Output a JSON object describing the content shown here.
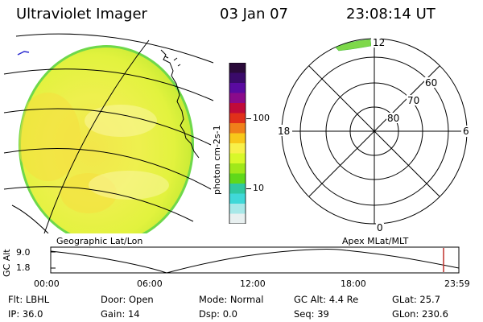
{
  "header": {
    "instrument": "Ultraviolet Imager",
    "date": "03 Jan 07",
    "time": "23:08:14 UT"
  },
  "colorbar": {
    "label": "photon cm-2s-1",
    "ticks": [
      "100",
      "10"
    ],
    "colors": [
      "#2a0a3a",
      "#3a0a6a",
      "#5a0aa0",
      "#8a0a8a",
      "#c00a3a",
      "#e0301a",
      "#f0801a",
      "#f8c81a",
      "#f8f04a",
      "#d8f82a",
      "#a0e81a",
      "#60d81a",
      "#30c8a0",
      "#40d8d8",
      "#a8e8e8",
      "#e8f0f0"
    ],
    "scale": "log"
  },
  "polar_plot": {
    "mlt_labels": [
      "12",
      "18",
      "6",
      "0"
    ],
    "lat_labels": [
      "80",
      "70",
      "60"
    ]
  },
  "timeline": {
    "y_label": "GC Alt",
    "y_ticks": [
      "9.0",
      "1.8"
    ],
    "left_caption": "Geographic Lat/Lon",
    "right_caption": "Apex MLat/MLT",
    "x_ticks": [
      "00:00",
      "06:00",
      "12:00",
      "18:00",
      "23:59"
    ],
    "marker_color": "#c0302a"
  },
  "footer": {
    "row1": [
      {
        "label": "Flt:",
        "value": "LBHL"
      },
      {
        "label": "Door:",
        "value": "Open"
      },
      {
        "label": "Mode:",
        "value": "Normal"
      },
      {
        "label": "GC Alt:",
        "value": "4.4 Re"
      },
      {
        "label": "GLat:",
        "value": "25.7"
      }
    ],
    "row2": [
      {
        "label": "IP:",
        "value": "36.0"
      },
      {
        "label": "Gain:",
        "value": "14"
      },
      {
        "label": "Dsp:",
        "value": "0.0"
      },
      {
        "label": "Seq:",
        "value": "39"
      },
      {
        "label": "GLon:",
        "value": "230.6"
      }
    ]
  }
}
